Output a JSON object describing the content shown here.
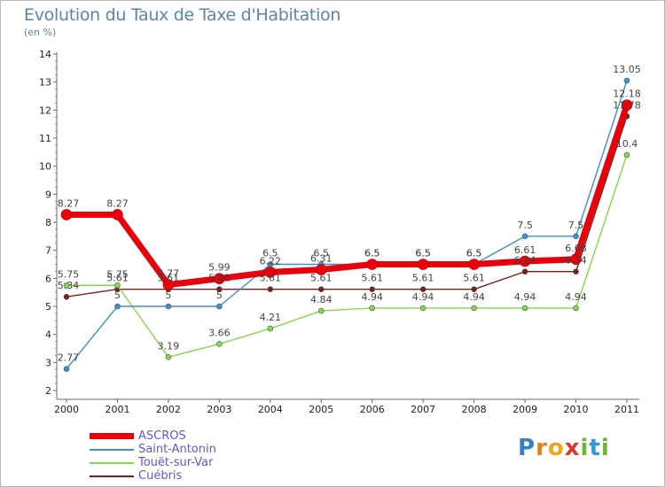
{
  "title": "Evolution du Taux de Taxe d'Habitation",
  "subtitle": "(en %)",
  "logo_text": "Proxiti",
  "chart_data": {
    "type": "line",
    "x": [
      "2000",
      "2001",
      "2002",
      "2003",
      "2004",
      "2005",
      "2006",
      "2007",
      "2008",
      "2009",
      "2010",
      "2011"
    ],
    "ylim": [
      2,
      14
    ],
    "yticks": [
      "2",
      "3",
      "4",
      "5",
      "6",
      "7",
      "8",
      "9",
      "10",
      "11",
      "12",
      "13",
      "14"
    ],
    "grid": false,
    "legend_position": "bottom-left",
    "series": [
      {
        "name": "ASCROS",
        "color": "#e8000b",
        "values": [
          8.27,
          8.27,
          5.77,
          5.99,
          6.22,
          6.31,
          6.5,
          6.5,
          6.5,
          6.61,
          6.68,
          12.18
        ],
        "labels": [
          "8.27",
          "8.27",
          "5.77",
          "5.99",
          "6.22",
          "6.31",
          "6.5",
          "6.5",
          "6.5",
          "6.61",
          "6.68",
          "12.18"
        ]
      },
      {
        "name": "Saint-Antonin",
        "color": "#3c8fd0",
        "values": [
          2.77,
          5,
          5,
          5,
          6.5,
          6.5,
          6.5,
          6.5,
          6.5,
          7.5,
          7.5,
          13.05
        ],
        "labels": [
          "2.77",
          "5",
          "5",
          "5",
          "6.5",
          "6.5",
          "6.5",
          "6.5",
          "6.5",
          "7.5",
          "7.5",
          "13.05"
        ]
      },
      {
        "name": "Touët-sur-Var",
        "color": "#84d84c",
        "values": [
          5.75,
          5.75,
          3.19,
          3.66,
          4.21,
          4.84,
          4.94,
          4.94,
          4.94,
          4.94,
          4.94,
          10.4
        ],
        "labels": [
          "5.75",
          "5.75",
          "3.19",
          "3.66",
          "4.21",
          "4.84",
          "4.94",
          "4.94",
          "4.94",
          "4.94",
          "4.94",
          "10.4"
        ]
      },
      {
        "name": "Cuébris",
        "color": "#7a1e1e",
        "values": [
          5.34,
          5.61,
          5.61,
          5.61,
          5.61,
          5.61,
          5.61,
          5.61,
          5.61,
          6.24,
          6.24,
          11.78
        ],
        "labels": [
          "5.34",
          "5.61",
          "5.61",
          "5.61",
          "5.61",
          "5.61",
          "5.61",
          "5.61",
          "5.61",
          "6.24",
          "6.24",
          "11.78"
        ]
      }
    ]
  }
}
